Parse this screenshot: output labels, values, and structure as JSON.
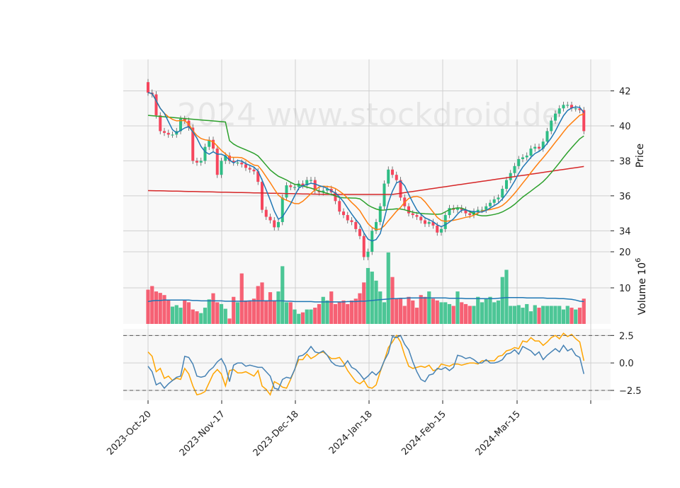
{
  "chart_data": {
    "type": "candlestick",
    "watermark": "2024 www.stockdroid.de",
    "x_tick_labels": [
      "2023-Oct-20",
      "2023-Nov-17",
      "2023-Dec-18",
      "2024-Jan-18",
      "2024-Feb-15",
      "2024-Mar-15"
    ],
    "colors": {
      "up": "#2ebd85",
      "down": "#f6465d",
      "ma_fast": "#1f77b4",
      "ma_mid": "#ff7f0e",
      "ma_slow": "#2ca02c",
      "ma_long": "#d62728",
      "osc1": "#4682b4",
      "osc2": "#ffa500",
      "vol_ma": "#1f77b4"
    },
    "price_panel": {
      "ylabel": "Price",
      "ylim": [
        32.8,
        43.8
      ],
      "yticks": [
        "34",
        "36",
        "38",
        "40",
        "42"
      ],
      "ytick_values": [
        34,
        36,
        38,
        40,
        42
      ]
    },
    "volume_panel": {
      "ylabel": "Volume  10",
      "ylabel_exp": "6",
      "ylim": [
        0,
        20
      ],
      "yticks": [
        "10",
        "20"
      ],
      "ytick_values": [
        10,
        20
      ]
    },
    "osc_panel": {
      "ylim": [
        -3.4,
        3.1
      ],
      "yticks": [
        "2.5",
        "0.0",
        "−2.5"
      ],
      "ytick_values": [
        2.5,
        0,
        -2.5
      ],
      "hlines": [
        2.5,
        -2.5
      ]
    },
    "closes": [
      41.9,
      41.8,
      40.6,
      39.7,
      39.6,
      39.5,
      39.5,
      39.7,
      40.4,
      40.3,
      39.9,
      38.0,
      37.9,
      38.0,
      38.8,
      39.2,
      38.7,
      37.2,
      38.0,
      38.3,
      38.0,
      37.9,
      37.9,
      37.8,
      37.6,
      37.5,
      37.4,
      36.8,
      35.2,
      34.8,
      34.6,
      34.2,
      34.5,
      35.9,
      36.6,
      36.5,
      36.5,
      36.7,
      36.6,
      36.9,
      36.9,
      36.3,
      36.2,
      36.3,
      36.4,
      36.2,
      35.7,
      35.1,
      34.9,
      34.6,
      34.5,
      34.1,
      33.7,
      32.5,
      32.8,
      34.0,
      34.5,
      35.4,
      36.7,
      37.5,
      37.2,
      36.9,
      35.9,
      35.4,
      35.0,
      34.9,
      34.8,
      34.6,
      34.4,
      34.5,
      34.3,
      33.9,
      34.1,
      34.9,
      35.3,
      35.2,
      35.3,
      35.2,
      35.0,
      34.9,
      35.1,
      35.2,
      35.2,
      35.4,
      35.6,
      35.8,
      35.9,
      36.4,
      36.9,
      37.3,
      37.7,
      38.1,
      38.2,
      38.3,
      38.7,
      38.8,
      38.7,
      39.1,
      39.7,
      40.3,
      40.7,
      41.0,
      41.2,
      41.2,
      41.0,
      41.0,
      40.9,
      39.7
    ],
    "volume_m": [
      9.5,
      10.5,
      9.0,
      8.6,
      8.0,
      6.5,
      4.8,
      5.2,
      4.5,
      6.5,
      6.0,
      4.0,
      3.5,
      3.0,
      4.5,
      6.8,
      8.5,
      6.0,
      5.5,
      4.2,
      1.5,
      7.5,
      6.0,
      14.0,
      6.5,
      6.5,
      7.0,
      10.5,
      11.5,
      6.5,
      8.8,
      6.5,
      9.0,
      16.0,
      6.0,
      6.0,
      4.0,
      2.8,
      3.2,
      4.0,
      4.0,
      4.5,
      5.5,
      7.5,
      6.5,
      9.0,
      5.5,
      6.0,
      6.5,
      5.5,
      6.5,
      7.0,
      8.5,
      11.5,
      15.5,
      14.5,
      12.0,
      9.0,
      6.0,
      19.8,
      13.0,
      7.0,
      7.0,
      5.0,
      7.5,
      6.5,
      4.5,
      8.0,
      7.5,
      9.0,
      7.0,
      6.5,
      6.0,
      6.0,
      5.5,
      5.0,
      9.0,
      6.0,
      5.5,
      5.0,
      5.0,
      7.5,
      6.0,
      7.0,
      7.5,
      6.0,
      6.5,
      13.0,
      15.0,
      5.0,
      5.0,
      5.2,
      4.5,
      5.5,
      3.5,
      5.2,
      4.5,
      5.0,
      5.0,
      5.0,
      5.0,
      5.0,
      4.0,
      5.0,
      4.5,
      4.0,
      4.5,
      7.0
    ],
    "volume_ma_m": [
      6.2,
      6.4,
      6.5,
      6.5,
      6.6,
      6.6,
      6.6,
      6.6,
      6.6,
      6.6,
      6.6,
      6.5,
      6.5,
      6.4,
      6.4,
      6.4,
      6.4,
      6.4,
      6.4,
      6.3,
      6.3,
      6.3,
      6.3,
      6.3,
      6.3,
      6.4,
      6.4,
      6.4,
      6.4,
      6.4,
      6.4,
      6.4,
      6.4,
      6.4,
      6.3,
      6.3,
      6.2,
      6.2,
      6.2,
      6.2,
      6.2,
      6.1,
      6.1,
      6.1,
      6.1,
      6.1,
      6.1,
      6.1,
      6.1,
      6.2,
      6.2,
      6.2,
      6.3,
      6.3,
      6.4,
      6.5,
      6.6,
      6.7,
      6.8,
      6.9,
      7.0,
      7.0,
      7.1,
      7.1,
      7.2,
      7.2,
      7.2,
      7.2,
      7.2,
      7.2,
      7.2,
      7.2,
      7.2,
      7.2,
      7.1,
      7.1,
      7.1,
      7.1,
      7.0,
      7.0,
      7.0,
      7.0,
      7.0,
      7.0,
      7.0,
      7.0,
      7.1,
      7.2,
      7.3,
      7.3,
      7.3,
      7.3,
      7.3,
      7.2,
      7.2,
      7.2,
      7.2,
      7.2,
      7.1,
      7.1,
      7.1,
      7.0,
      7.0,
      6.9,
      6.8,
      6.6,
      6.3,
      6.2
    ],
    "osc1": [
      -0.3,
      -0.8,
      -2.0,
      -1.8,
      -2.3,
      -1.9,
      -1.6,
      -1.3,
      -1.2,
      0.6,
      0.5,
      -0.1,
      -1.2,
      -1.3,
      -1.2,
      -0.7,
      -0.4,
      0.1,
      0.4,
      -0.3,
      -1.7,
      -0.2,
      0.0,
      0.0,
      -0.3,
      -0.2,
      -0.3,
      -0.4,
      -0.4,
      -0.8,
      -1.2,
      -2.3,
      -2.4,
      -1.5,
      -1.3,
      -1.4,
      -0.6,
      0.6,
      0.7,
      1.0,
      1.5,
      1.0,
      0.9,
      1.1,
      0.7,
      0.1,
      -0.2,
      -0.3,
      -0.3,
      0.2,
      -0.4,
      -0.6,
      -1.0,
      -1.5,
      -1.2,
      -0.8,
      -1.1,
      -0.7,
      0.2,
      0.9,
      2.4,
      2.3,
      2.5,
      1.7,
      1.2,
      0.1,
      -0.8,
      -1.5,
      -1.7,
      -1.1,
      -1.0,
      -0.5,
      -0.6,
      -0.4,
      -0.7,
      -0.4,
      0.7,
      0.6,
      0.4,
      0.5,
      0.3,
      0.0,
      0.0,
      0.3,
      0.0,
      0.0,
      0.1,
      0.3,
      0.8,
      0.9,
      1.2,
      0.8,
      1.5,
      1.3,
      1.1,
      0.7,
      1.0,
      0.3,
      0.7,
      1.0,
      1.3,
      1.0,
      1.6,
      1.1,
      1.3,
      0.7,
      0.5,
      -1.0
    ],
    "osc2": [
      1.0,
      0.6,
      -0.8,
      -0.5,
      -1.4,
      -1.2,
      -1.6,
      -1.4,
      -1.5,
      -0.5,
      -1.0,
      -2.1,
      -2.9,
      -2.8,
      -2.6,
      -1.8,
      -1.0,
      -0.6,
      -1.0,
      -2.1,
      -0.7,
      -0.6,
      -0.9,
      -0.9,
      -0.8,
      -1.0,
      -1.2,
      -0.7,
      -2.1,
      -2.4,
      -2.9,
      -1.7,
      -1.9,
      -2.2,
      -2.3,
      -1.5,
      -0.6,
      0.3,
      0.3,
      0.8,
      0.4,
      0.6,
      0.9,
      1.0,
      0.7,
      0.4,
      0.4,
      0.5,
      0.0,
      -0.7,
      -1.2,
      -1.7,
      -1.9,
      -1.6,
      -2.2,
      -2.3,
      -2.0,
      -0.8,
      0.2,
      1.4,
      1.9,
      2.5,
      1.9,
      0.7,
      -0.3,
      -0.5,
      -0.4,
      -0.3,
      -0.4,
      -0.2,
      -0.7,
      -0.6,
      -0.1,
      -0.2,
      -0.3,
      -0.1,
      -0.1,
      -0.2,
      -0.1,
      0.0,
      0.0,
      -0.1,
      0.2,
      0.2,
      0.2,
      0.2,
      0.6,
      0.7,
      1.1,
      1.2,
      1.4,
      1.3,
      2.0,
      1.9,
      2.3,
      2.0,
      2.0,
      1.6,
      1.9,
      2.3,
      2.5,
      2.2,
      2.7,
      2.4,
      2.6,
      2.2,
      1.9,
      0.2
    ]
  }
}
